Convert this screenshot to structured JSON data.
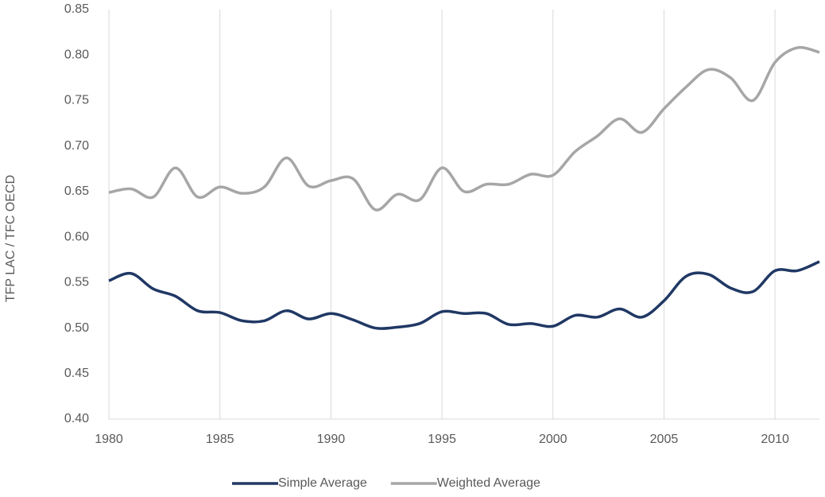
{
  "chart_data": {
    "type": "line",
    "y_label": "TFP LAC / TFC OECD",
    "x": [
      1980,
      1981,
      1982,
      1983,
      1984,
      1985,
      1986,
      1987,
      1988,
      1989,
      1990,
      1991,
      1992,
      1993,
      1994,
      1995,
      1996,
      1997,
      1998,
      1999,
      2000,
      2001,
      2002,
      2003,
      2004,
      2005,
      2006,
      2007,
      2008,
      2009,
      2010,
      2011,
      2012
    ],
    "series": [
      {
        "name": "Simple Average",
        "color": "#203864",
        "values": [
          0.552,
          0.56,
          0.543,
          0.535,
          0.519,
          0.517,
          0.508,
          0.508,
          0.519,
          0.51,
          0.516,
          0.509,
          0.5,
          0.501,
          0.505,
          0.518,
          0.516,
          0.516,
          0.504,
          0.505,
          0.502,
          0.514,
          0.512,
          0.521,
          0.512,
          0.53,
          0.557,
          0.559,
          0.544,
          0.54,
          0.563,
          0.563,
          0.573
        ]
      },
      {
        "name": "Weighted Average",
        "color": "#a6a6a6",
        "values": [
          0.649,
          0.653,
          0.644,
          0.676,
          0.644,
          0.655,
          0.648,
          0.655,
          0.687,
          0.656,
          0.662,
          0.664,
          0.63,
          0.647,
          0.641,
          0.676,
          0.65,
          0.658,
          0.658,
          0.669,
          0.668,
          0.694,
          0.711,
          0.73,
          0.715,
          0.741,
          0.765,
          0.784,
          0.775,
          0.75,
          0.792,
          0.808,
          0.803
        ]
      }
    ],
    "xlim": [
      1980,
      2012
    ],
    "xticks": [
      1980,
      1985,
      1990,
      1995,
      2000,
      2005,
      2010
    ],
    "ylim": [
      0.4,
      0.85
    ],
    "yticks": [
      {
        "value": 0.4,
        "label": "0.40"
      },
      {
        "value": 0.45,
        "label": "0.45"
      },
      {
        "value": 0.5,
        "label": "0.50"
      },
      {
        "value": 0.55,
        "label": "0.55"
      },
      {
        "value": 0.6,
        "label": "0.60"
      },
      {
        "value": 0.65,
        "label": "0.65"
      },
      {
        "value": 0.7,
        "label": "0.70"
      },
      {
        "value": 0.75,
        "label": "0.75"
      },
      {
        "value": 0.8,
        "label": "0.80"
      },
      {
        "value": 0.85,
        "label": "0.85"
      }
    ],
    "grid": "x",
    "legend": "bottom"
  }
}
